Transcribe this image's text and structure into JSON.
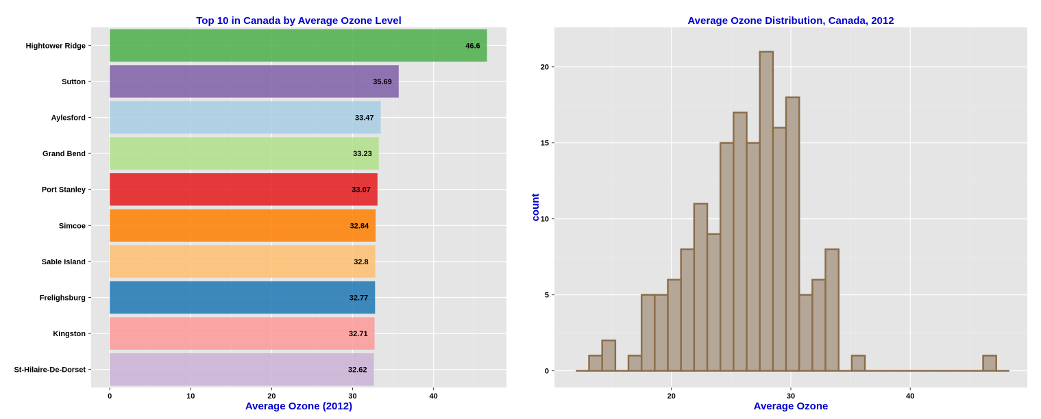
{
  "chart_data": [
    {
      "type": "bar",
      "orientation": "horizontal",
      "title": "Top 10 in Canada by Average Ozone Level",
      "xlabel": "Average Ozone (2012)",
      "ylabel": "",
      "xlim": [
        -2.3,
        49
      ],
      "xticks": [
        0,
        10,
        20,
        30,
        40
      ],
      "grid": true,
      "categories": [
        "Hightower Ridge",
        "Sutton",
        "Aylesford",
        "Grand Bend",
        "Port Stanley",
        "Simcoe",
        "Sable Island",
        "Frelighsburg",
        "Kingston",
        "St-Hilaire-De-Dorset"
      ],
      "values": [
        46.6,
        35.69,
        33.47,
        33.23,
        33.07,
        32.84,
        32.8,
        32.77,
        32.71,
        32.62
      ],
      "data_labels": [
        "46.6",
        "35.69",
        "33.47",
        "33.23",
        "33.07",
        "32.84",
        "32.8",
        "32.77",
        "32.71",
        "32.62"
      ],
      "colors": [
        "#4DAF4A",
        "#7F5FA8",
        "#A6CEE3",
        "#B2DF8A",
        "#E41A1C",
        "#FF7F00",
        "#FDBF6F",
        "#1F78B4",
        "#FB9A99",
        "#CAB2D6"
      ]
    },
    {
      "type": "histogram",
      "title": "Average Ozone Distribution, Canada, 2012",
      "xlabel": "Average Ozone",
      "ylabel": "count",
      "xlim": [
        10.2,
        49.8
      ],
      "ylim": [
        -1.1,
        22.6
      ],
      "xticks": [
        20,
        30,
        40
      ],
      "yticks": [
        0,
        5,
        10,
        15,
        20
      ],
      "grid": true,
      "bin_start": 12.0,
      "bin_width": 1.1,
      "counts": [
        0,
        1,
        2,
        0,
        1,
        5,
        5,
        6,
        8,
        11,
        9,
        15,
        17,
        15,
        21,
        16,
        18,
        5,
        6,
        8,
        0,
        1,
        0,
        0,
        0,
        0,
        0,
        0,
        0,
        0,
        0,
        1,
        0
      ],
      "fill": "#B5A797",
      "stroke": "#8B6E4B"
    }
  ]
}
